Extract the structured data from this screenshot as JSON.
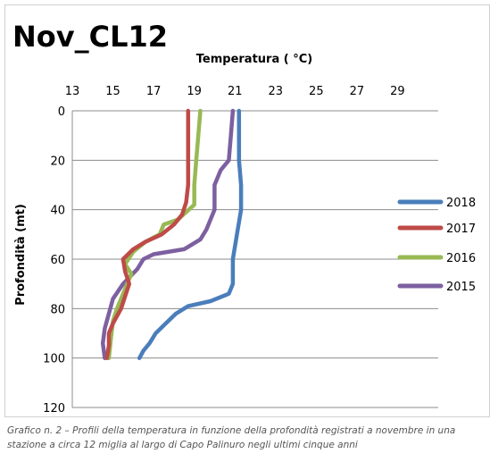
{
  "chart_data": {
    "type": "line",
    "title": "Nov_CL12",
    "xlabel": "Temperatura ( °C)",
    "ylabel": "Profondità (mt)",
    "xlim": [
      13,
      31
    ],
    "ylim": [
      0,
      120
    ],
    "y_inverted": true,
    "x_axis_position": "top",
    "x_ticks": [
      "13",
      "15",
      "17",
      "19",
      "21",
      "23",
      "25",
      "27",
      "29"
    ],
    "y_ticks": [
      "0",
      "20",
      "40",
      "60",
      "80",
      "100",
      "120"
    ],
    "grid": "horizontal",
    "legend_position": "right",
    "series": [
      {
        "name": "2018",
        "color": "#4a7ebb",
        "points": [
          [
            21.2,
            0
          ],
          [
            21.2,
            10
          ],
          [
            21.2,
            20
          ],
          [
            21.3,
            30
          ],
          [
            21.3,
            40
          ],
          [
            21.2,
            45
          ],
          [
            21.1,
            50
          ],
          [
            21.0,
            55
          ],
          [
            20.9,
            60
          ],
          [
            20.9,
            65
          ],
          [
            20.9,
            70
          ],
          [
            20.7,
            74
          ],
          [
            19.8,
            77
          ],
          [
            18.7,
            79
          ],
          [
            18.1,
            82
          ],
          [
            17.6,
            86
          ],
          [
            17.1,
            90
          ],
          [
            16.8,
            94
          ],
          [
            16.5,
            97
          ],
          [
            16.3,
            100
          ]
        ]
      },
      {
        "name": "2017",
        "color": "#be4b48",
        "points": [
          [
            18.7,
            0
          ],
          [
            18.7,
            10
          ],
          [
            18.7,
            20
          ],
          [
            18.7,
            30
          ],
          [
            18.6,
            37
          ],
          [
            18.4,
            42
          ],
          [
            18.0,
            46
          ],
          [
            17.4,
            50
          ],
          [
            16.6,
            53
          ],
          [
            16.0,
            56
          ],
          [
            15.5,
            60
          ],
          [
            15.6,
            65
          ],
          [
            15.8,
            70
          ],
          [
            15.6,
            75
          ],
          [
            15.4,
            80
          ],
          [
            15.0,
            86
          ],
          [
            14.8,
            90
          ],
          [
            14.8,
            95
          ],
          [
            14.7,
            100
          ]
        ]
      },
      {
        "name": "2016",
        "color": "#98b954",
        "points": [
          [
            19.3,
            0
          ],
          [
            19.2,
            10
          ],
          [
            19.1,
            20
          ],
          [
            19.0,
            30
          ],
          [
            19.0,
            38
          ],
          [
            18.2,
            44
          ],
          [
            17.5,
            46
          ],
          [
            17.3,
            50
          ],
          [
            16.6,
            53
          ],
          [
            16.0,
            57
          ],
          [
            15.6,
            62
          ],
          [
            15.9,
            66
          ],
          [
            15.6,
            72
          ],
          [
            15.2,
            80
          ],
          [
            15.0,
            85
          ],
          [
            14.9,
            92
          ],
          [
            14.8,
            100
          ]
        ]
      },
      {
        "name": "2015",
        "color": "#7d60a0",
        "points": [
          [
            20.9,
            0
          ],
          [
            20.8,
            10
          ],
          [
            20.7,
            20
          ],
          [
            20.3,
            24
          ],
          [
            20.0,
            30
          ],
          [
            20.0,
            40
          ],
          [
            19.6,
            48
          ],
          [
            19.3,
            52
          ],
          [
            18.5,
            56
          ],
          [
            17.0,
            58
          ],
          [
            16.5,
            60
          ],
          [
            16.2,
            64
          ],
          [
            15.5,
            70
          ],
          [
            15.0,
            76
          ],
          [
            14.8,
            82
          ],
          [
            14.6,
            88
          ],
          [
            14.5,
            94
          ],
          [
            14.6,
            100
          ]
        ]
      }
    ],
    "legend": [
      "2018",
      "2017",
      "2016",
      "2015"
    ]
  },
  "caption": "Grafico n. 2 – Profili della temperatura in funzione della profondità registrati a novembre in una stazione a circa 12 miglia al largo di Capo Palinuro negli ultimi cinque anni"
}
